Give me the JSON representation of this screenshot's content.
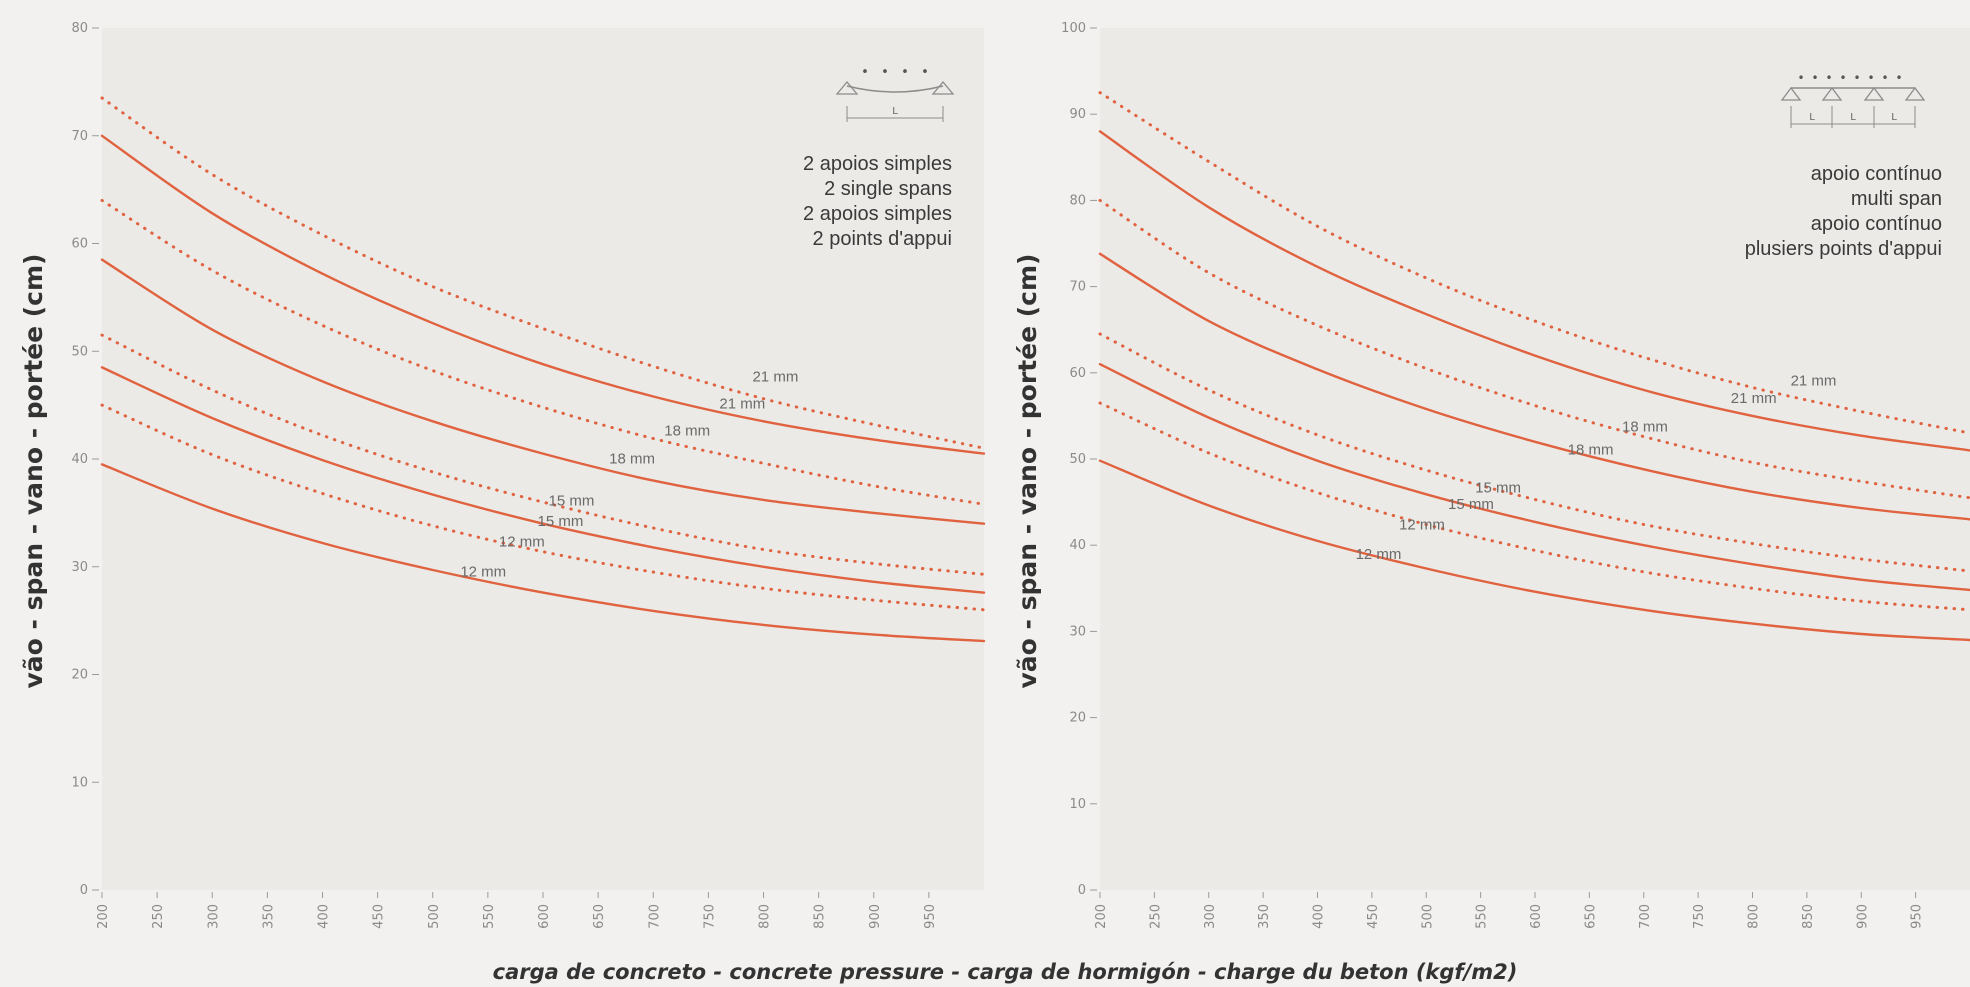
{
  "xlabel": "carga de concreto - concrete pressure - carga de hormigón - charge du beton  (kgf/m2)",
  "colors": {
    "curve": "#e0623f",
    "plot_bg": "#ebeae7",
    "page_bg": "#f2f1ef"
  },
  "chart_data": [
    {
      "type": "line",
      "ylabel": "vão - span - vano - portée (cm)",
      "legend_lines": [
        "2 apoios simples",
        "2 single spans",
        "2 apoios simples",
        "2 points d'appui"
      ],
      "legend_placement": "top-right",
      "support_icon": "two-point-support-beam-icon",
      "xlim": [
        200,
        1000
      ],
      "ylim": [
        0,
        80
      ],
      "x_ticks": [
        200,
        250,
        300,
        350,
        400,
        450,
        500,
        550,
        600,
        650,
        700,
        750,
        800,
        850,
        900,
        950
      ],
      "y_ticks": [
        0,
        10,
        20,
        30,
        40,
        50,
        60,
        70,
        80
      ],
      "x": [
        200,
        300,
        400,
        500,
        600,
        700,
        800,
        900,
        1000
      ],
      "series": [
        {
          "name": "21 mm",
          "style": "dotted",
          "values": [
            73.5,
            66.4,
            60.8,
            56.0,
            52.1,
            48.6,
            45.6,
            43.2,
            41.0
          ]
        },
        {
          "name": "21 mm",
          "style": "solid",
          "values": [
            70.0,
            62.8,
            57.2,
            52.6,
            48.8,
            45.8,
            43.5,
            41.8,
            40.5
          ]
        },
        {
          "name": "18 mm",
          "style": "dotted",
          "values": [
            64.0,
            57.5,
            52.4,
            48.2,
            44.8,
            41.9,
            39.6,
            37.5,
            35.8
          ]
        },
        {
          "name": "18 mm",
          "style": "solid",
          "values": [
            58.5,
            52.0,
            47.2,
            43.5,
            40.5,
            38.0,
            36.2,
            35.0,
            34.0
          ]
        },
        {
          "name": "15 mm",
          "style": "dotted",
          "values": [
            51.5,
            46.4,
            42.2,
            38.8,
            36.0,
            33.6,
            31.6,
            30.3,
            29.3
          ]
        },
        {
          "name": "15 mm",
          "style": "solid",
          "values": [
            48.5,
            43.8,
            39.9,
            36.7,
            34.0,
            31.8,
            30.0,
            28.6,
            27.6
          ]
        },
        {
          "name": "12 mm",
          "style": "dotted",
          "values": [
            45.0,
            40.4,
            36.8,
            33.8,
            31.4,
            29.5,
            28.0,
            26.9,
            26.0
          ]
        },
        {
          "name": "12 mm",
          "style": "solid",
          "values": [
            39.5,
            35.4,
            32.2,
            29.7,
            27.6,
            25.9,
            24.6,
            23.7,
            23.1
          ]
        }
      ],
      "curve_labels": [
        {
          "text": "21 mm",
          "x": 790,
          "y": 47.2
        },
        {
          "text": "21 mm",
          "x": 760,
          "y": 44.7
        },
        {
          "text": "18 mm",
          "x": 710,
          "y": 42.2
        },
        {
          "text": "18 mm",
          "x": 660,
          "y": 39.6
        },
        {
          "text": "15 mm",
          "x": 605,
          "y": 35.7
        },
        {
          "text": "15 mm",
          "x": 595,
          "y": 33.8
        },
        {
          "text": "12 mm",
          "x": 560,
          "y": 31.9
        },
        {
          "text": "12 mm",
          "x": 525,
          "y": 29.1
        }
      ]
    },
    {
      "type": "line",
      "ylabel": "vão - span - vano - portée (cm)",
      "legend_lines": [
        "apoio contínuo",
        "multi span",
        "apoio contínuo",
        "plusiers points d'appui"
      ],
      "legend_placement": "top-right",
      "support_icon": "multi-point-support-beam-icon",
      "xlim": [
        200,
        1000
      ],
      "ylim": [
        0,
        100
      ],
      "x_ticks": [
        200,
        250,
        300,
        350,
        400,
        450,
        500,
        550,
        600,
        650,
        700,
        750,
        800,
        850,
        900,
        950
      ],
      "y_ticks": [
        0,
        10,
        20,
        30,
        40,
        50,
        60,
        70,
        80,
        90,
        100
      ],
      "x": [
        200,
        300,
        400,
        500,
        600,
        700,
        800,
        900,
        1000
      ],
      "series": [
        {
          "name": "21 mm",
          "style": "dotted",
          "values": [
            92.5,
            84.5,
            77.0,
            71.0,
            66.0,
            61.8,
            58.3,
            55.5,
            53.0
          ]
        },
        {
          "name": "21 mm",
          "style": "solid",
          "values": [
            88.0,
            79.2,
            72.3,
            66.8,
            62.0,
            58.0,
            55.0,
            52.7,
            51.0
          ]
        },
        {
          "name": "18 mm",
          "style": "dotted",
          "values": [
            80.0,
            71.6,
            65.5,
            60.5,
            56.2,
            52.6,
            49.6,
            47.4,
            45.5
          ]
        },
        {
          "name": "18 mm",
          "style": "solid",
          "values": [
            73.8,
            66.0,
            60.4,
            55.8,
            52.0,
            48.8,
            46.2,
            44.3,
            43.0
          ]
        },
        {
          "name": "15 mm",
          "style": "dotted",
          "values": [
            64.5,
            58.0,
            52.8,
            48.7,
            45.3,
            42.4,
            40.2,
            38.4,
            37.0
          ]
        },
        {
          "name": "15 mm",
          "style": "solid",
          "values": [
            61.0,
            54.8,
            49.8,
            45.9,
            42.7,
            40.0,
            37.8,
            36.0,
            34.8
          ]
        },
        {
          "name": "12 mm",
          "style": "dotted",
          "values": [
            56.5,
            50.7,
            46.1,
            42.4,
            39.4,
            36.9,
            35.0,
            33.5,
            32.5
          ]
        },
        {
          "name": "12 mm",
          "style": "solid",
          "values": [
            49.8,
            44.6,
            40.5,
            37.3,
            34.6,
            32.5,
            30.9,
            29.7,
            29.0
          ]
        }
      ],
      "curve_labels": [
        {
          "text": "21 mm",
          "x": 835,
          "y": 58.5
        },
        {
          "text": "21 mm",
          "x": 780,
          "y": 56.5
        },
        {
          "text": "18 mm",
          "x": 680,
          "y": 53.2
        },
        {
          "text": "18 mm",
          "x": 630,
          "y": 50.5
        },
        {
          "text": "15 mm",
          "x": 545,
          "y": 46.1
        },
        {
          "text": "15 mm",
          "x": 520,
          "y": 44.2
        },
        {
          "text": "12 mm",
          "x": 475,
          "y": 41.8
        },
        {
          "text": "12 mm",
          "x": 435,
          "y": 38.4
        }
      ]
    }
  ]
}
